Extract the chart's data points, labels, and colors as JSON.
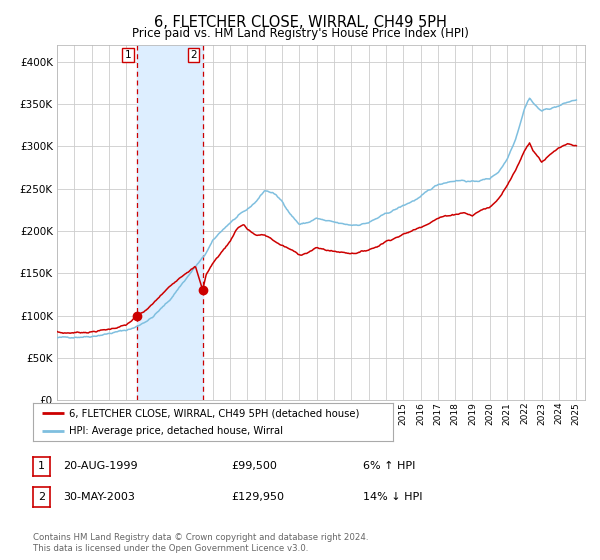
{
  "title": "6, FLETCHER CLOSE, WIRRAL, CH49 5PH",
  "subtitle": "Price paid vs. HM Land Registry's House Price Index (HPI)",
  "hpi_color": "#7fbfdf",
  "price_color": "#cc0000",
  "marker_color": "#cc0000",
  "shading_color": "#ddeeff",
  "dashed_color": "#cc0000",
  "background_color": "#ffffff",
  "grid_color": "#cccccc",
  "ylim": [
    0,
    420000
  ],
  "yticks": [
    0,
    50000,
    100000,
    150000,
    200000,
    250000,
    300000,
    350000,
    400000
  ],
  "sale1_date_num": 1999.64,
  "sale1_price": 99500,
  "sale2_date_num": 2003.41,
  "sale2_price": 129950,
  "legend_label_price": "6, FLETCHER CLOSE, WIRRAL, CH49 5PH (detached house)",
  "legend_label_hpi": "HPI: Average price, detached house, Wirral",
  "table_rows": [
    {
      "num": "1",
      "date": "20-AUG-1999",
      "price": "£99,500",
      "hpi": "6% ↑ HPI"
    },
    {
      "num": "2",
      "date": "30-MAY-2003",
      "price": "£129,950",
      "hpi": "14% ↓ HPI"
    }
  ],
  "footer": "Contains HM Land Registry data © Crown copyright and database right 2024.\nThis data is licensed under the Open Government Licence v3.0.",
  "xmin": 1995.0,
  "xmax": 2025.5
}
